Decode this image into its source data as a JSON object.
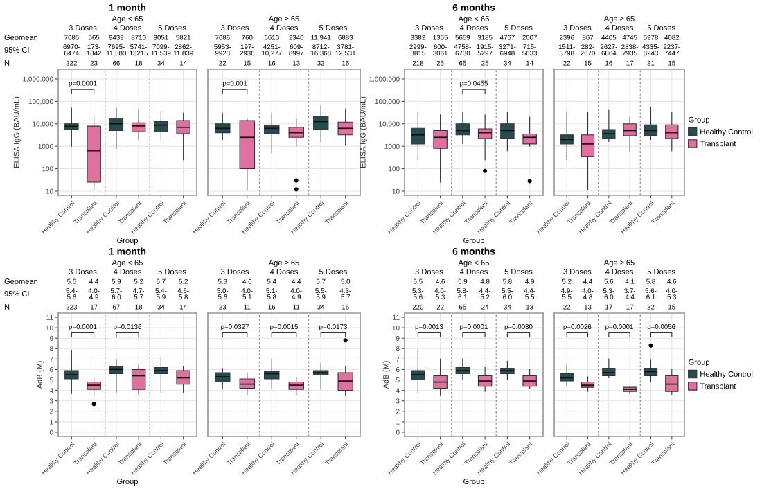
{
  "chart_data": [
    {
      "type": "box",
      "title": "1 month",
      "xlabel": "Group",
      "ylabel": "ELISA IgG (BAU/mL)",
      "categories": [
        "Healthy Control",
        "Transplant",
        "Healthy Control",
        "Transplant",
        "Healthy Control",
        "Transplant"
      ],
      "series": [
        {
          "color": "#284b4f",
          "boxes": [
            {
              "low": 1000,
              "q1": 5500,
              "median": 7700,
              "q3": 10000,
              "high": 50000
            },
            null,
            {
              "low": 800,
              "q1": 5000,
              "median": 10000,
              "q3": 17000,
              "high": 50000
            },
            null,
            {
              "low": 2000,
              "q1": 4600,
              "median": 8700,
              "q3": 12600,
              "high": 35000
            },
            null
          ]
        },
        {
          "color": "#e0709f",
          "boxes": [
            null,
            {
              "low": 12,
              "q1": 25,
              "median": 630,
              "q3": 7900,
              "high": 20000
            },
            null,
            {
              "low": 2000,
              "q1": 4400,
              "median": 8000,
              "q3": 11000,
              "high": 40000
            },
            null,
            {
              "low": 250,
              "q1": 3600,
              "median": 7000,
              "q3": 14000,
              "high": 30000
            }
          ]
        }
      ],
      "log": true,
      "ylim": [
        6.5,
        2700000
      ],
      "yticks": [
        10,
        100,
        1000,
        {
          "value": 10000,
          "label": "10,000"
        },
        {
          "value": 100000,
          "label": "100,000"
        },
        {
          "value": 1000000,
          "label": "1,000,000"
        }
      ],
      "grid": true,
      "annotations": [
        "3 Doses",
        "4 Doses",
        "5 Doses",
        "Age < 65",
        "7685",
        "565",
        "9439",
        "8710",
        "9051",
        "5821",
        "6970-\n8474",
        "173-\n1842",
        "7695-\n11,580",
        "5741-\n13215",
        "7099-\n11,539",
        "2862-\n11,839",
        "222",
        "23",
        "66",
        "18",
        "34",
        "14",
        "p=0.0001",
        null,
        null,
        "Geomean",
        "95% CI",
        "N"
      ]
    },
    {
      "type": "box",
      "categories": [
        "Healthy Control",
        "Transplant",
        "Healthy Control",
        "Transplant",
        "Healthy Control",
        "Transplant"
      ],
      "series": [
        {
          "color": "#284b4f",
          "boxes": [
            {
              "low": 2000,
              "q1": 4000,
              "median": 6300,
              "q3": 10000,
              "high": 30000
            },
            null,
            {
              "low": 500,
              "q1": 3600,
              "median": 6300,
              "q3": 8700,
              "high": 30000
            },
            null,
            {
              "low": 1600,
              "q1": 5500,
              "median": 12600,
              "q3": 22000,
              "high": 63000
            },
            null
          ]
        },
        {
          "color": "#e0709f",
          "boxes": [
            null,
            {
              "low": 12,
              "q1": 100,
              "median": 2500,
              "q3": 14000,
              "high": 16000
            },
            null,
            {
              "low": 1000,
              "q1": 2500,
              "median": 4000,
              "q3": 7000,
              "high": 16000,
              "outliers": [
                12,
                30
              ]
            },
            null,
            {
              "low": 1100,
              "q1": 3200,
              "median": 6300,
              "q3": 12000,
              "high": 46000
            }
          ]
        }
      ],
      "log": true,
      "ylim": [
        6.5,
        2700000
      ],
      "yticks": [
        10,
        100,
        1000,
        10000,
        100000,
        1000000
      ],
      "grid": true,
      "tick_labels": "x",
      "annotations": [
        "3 Doses",
        "4 Doses",
        "5 Doses",
        "Age ≥ 65",
        "7686",
        "760",
        "6610",
        "2340",
        "11,941",
        "6883",
        "5953-\n9923",
        "197-\n2936",
        "4251-\n10,277",
        "609-\n8997",
        "8712-\n16,368",
        "3781-\n12,531",
        "22",
        "15",
        "16",
        "13",
        "32",
        "16",
        "p=0.001",
        null,
        null
      ]
    },
    {
      "type": "box",
      "title": "6 months",
      "xlabel": "Group",
      "ylabel": "ELISA IgG (BAU/mL)",
      "categories": [
        "Healthy Control",
        "Transplant",
        "Healthy Control",
        "Transplant",
        "Healthy Control",
        "Transplant"
      ],
      "series": [
        {
          "color": "#284b4f",
          "boxes": [
            {
              "low": 250,
              "q1": 1260,
              "median": 3200,
              "q3": 6300,
              "high": 32000
            },
            null,
            {
              "low": 1300,
              "q1": 3200,
              "median": 5000,
              "q3": 10000,
              "high": 32000
            },
            null,
            {
              "low": 630,
              "q1": 2200,
              "median": 5000,
              "q3": 10000,
              "high": 32000
            },
            null
          ]
        },
        {
          "color": "#e0709f",
          "boxes": [
            null,
            {
              "low": 25,
              "q1": 800,
              "median": 2500,
              "q3": 5000,
              "high": 25000
            },
            null,
            {
              "low": 250,
              "q1": 2200,
              "median": 4000,
              "q3": 6000,
              "high": 25000,
              "outliers": [
                80
              ]
            },
            null,
            {
              "low": 1000,
              "q1": 1260,
              "median": 2500,
              "q3": 3500,
              "high": 20000,
              "outliers": [
                28
              ]
            }
          ]
        }
      ],
      "log": true,
      "ylim": [
        6.5,
        2700000
      ],
      "yticks": [
        10,
        100,
        1000,
        {
          "value": 10000,
          "label": "10,000"
        },
        {
          "value": 100000,
          "label": "100,000"
        },
        {
          "value": 1000000,
          "label": "1,000,000"
        }
      ],
      "grid": true,
      "annotations": [
        "3 Doses",
        "4 Doses",
        "5 Doses",
        "Age < 65",
        "3382",
        "1355",
        "5659",
        "3185",
        "4767",
        "2007",
        "2999-\n3815",
        "600-\n3061",
        "4758-\n6730",
        "1915-\n5297",
        "3271-\n6948",
        "715-\n5633",
        "218",
        "25",
        "65",
        "25",
        "34",
        "14",
        null,
        "p=0.0455",
        null
      ]
    },
    {
      "type": "box",
      "categories": [
        "Healthy Control",
        "Transplant",
        "Healthy Control",
        "Transplant",
        "Healthy Control",
        "Transplant"
      ],
      "series": [
        {
          "name": "Healthy Control",
          "color": "#284b4f",
          "boxes": [
            {
              "low": 250,
              "q1": 1260,
              "median": 2000,
              "q3": 3200,
              "high": 35000
            },
            null,
            {
              "low": 1600,
              "q1": 2200,
              "median": 3600,
              "q3": 5500,
              "high": 40000
            },
            null,
            {
              "low": 2000,
              "q1": 2900,
              "median": 5000,
              "q3": 9000,
              "high": 55000
            },
            null
          ]
        },
        {
          "name": "Transplant",
          "color": "#e0709f",
          "boxes": [
            null,
            {
              "low": 12,
              "q1": 350,
              "median": 1260,
              "q3": 3200,
              "high": 32000
            },
            null,
            {
              "low": 630,
              "q1": 2900,
              "median": 5000,
              "q3": 10000,
              "high": 20000
            },
            null,
            {
              "low": 630,
              "q1": 2200,
              "median": 4000,
              "q3": 9000,
              "high": 32000
            }
          ]
        }
      ],
      "log": true,
      "ylim": [
        6.5,
        2700000
      ],
      "yticks": [
        10,
        100,
        1000,
        10000,
        100000,
        1000000
      ],
      "grid": true,
      "tick_labels": "x",
      "legend": "right",
      "legend_title": "Group",
      "annotations": [
        "3 Doses",
        "4 Doses",
        "5 Doses",
        "Age ≥ 65",
        "2396",
        "867",
        "4405",
        "4745",
        "5978",
        "4082",
        "1511-\n3798",
        "282-\n2670",
        "2627-\n6864",
        "2838-\n7935",
        "4335-\n8243",
        "2237-\n7447",
        "22",
        "15",
        "16",
        "17",
        "31",
        "15",
        null,
        null,
        null
      ]
    },
    {
      "type": "box",
      "title": "1 month",
      "xlabel": "Group",
      "ylabel": "AdB (M)",
      "categories": [
        "Healthy Control",
        "Transplant",
        "Healthy Control",
        "Transplant",
        "Healthy Control",
        "Transplant"
      ],
      "series": [
        {
          "color": "#284b4f",
          "boxes": [
            {
              "low": 3.7,
              "q1": 5.1,
              "median": 5.5,
              "q3": 5.9,
              "high": 7.8
            },
            null,
            {
              "low": 3.8,
              "q1": 5.6,
              "median": 6.0,
              "q3": 6.3,
              "high": 6.9
            },
            null,
            {
              "low": 3.8,
              "q1": 5.6,
              "median": 5.9,
              "q3": 6.2,
              "high": 7.2
            },
            null
          ]
        },
        {
          "color": "#e0709f",
          "boxes": [
            null,
            {
              "low": 3.5,
              "q1": 4.1,
              "median": 4.5,
              "q3": 4.8,
              "high": 5.2,
              "outliers": [
                2.7
              ]
            },
            null,
            {
              "low": 3.6,
              "q1": 4.1,
              "median": 5.4,
              "q3": 6.0,
              "high": 6.4
            },
            null,
            {
              "low": 3.8,
              "q1": 4.6,
              "median": 5.2,
              "q3": 5.9,
              "high": 6.3
            }
          ]
        }
      ],
      "ylim": [
        -0.4,
        11.4
      ],
      "yticks": [
        0,
        1,
        2,
        3,
        4,
        5,
        6,
        7,
        8,
        9,
        10,
        11
      ],
      "grid": true,
      "annotations": [
        "3 Doses",
        "4 Doses",
        "5 Doses",
        "Age < 65",
        "5.5",
        "4.4",
        "5.9",
        "5.2",
        "5.7",
        "5.2",
        "5.4-\n5.6",
        "4.0-\n4.9",
        "5.7-\n6.0",
        "4.7-\n5.7",
        "5.4-\n5.9",
        "4.6-\n5.8",
        "223",
        "17",
        "67",
        "18",
        "34",
        "14",
        "p=0.0001",
        "p=0.0136",
        null,
        "Geomean",
        "95% CI",
        "N"
      ]
    },
    {
      "type": "box",
      "categories": [
        "Healthy Control",
        "Transplant",
        "Healthy Control",
        "Transplant",
        "Healthy Control",
        "Transplant"
      ],
      "series": [
        {
          "color": "#284b4f",
          "boxes": [
            {
              "low": 4.2,
              "q1": 4.8,
              "median": 5.3,
              "q3": 5.7,
              "high": 6.1
            },
            null,
            {
              "low": 4.2,
              "q1": 5.1,
              "median": 5.6,
              "q3": 5.8,
              "high": 7.0
            },
            null,
            {
              "low": 4.1,
              "q1": 5.5,
              "median": 5.7,
              "q3": 5.9,
              "high": 6.6
            },
            null
          ]
        },
        {
          "color": "#e0709f",
          "boxes": [
            null,
            {
              "low": 3.6,
              "q1": 4.2,
              "median": 4.6,
              "q3": 5.1,
              "high": 5.6
            },
            null,
            {
              "low": 3.6,
              "q1": 4.1,
              "median": 4.5,
              "q3": 4.8,
              "high": 5.2
            },
            null,
            {
              "low": 3.5,
              "q1": 4.0,
              "median": 4.9,
              "q3": 5.7,
              "high": 6.3,
              "outliers": [
                8.8
              ]
            }
          ]
        }
      ],
      "ylim": [
        -0.4,
        11.4
      ],
      "yticks": [
        0,
        1,
        2,
        3,
        4,
        5,
        6,
        7,
        8,
        9,
        10,
        11
      ],
      "grid": true,
      "tick_labels": "x",
      "annotations": [
        "3 Doses",
        "4 Doses",
        "5 Doses",
        "Age ≥ 65",
        "5.3",
        "4.6",
        "5.4",
        "4.4",
        "5.7",
        "5.0",
        "5.0-\n5.6",
        "4.0-\n5.1",
        "5.1-\n5.8",
        "4.0-\n4.9",
        "5.5-\n5.9",
        "4.3-\n5.7",
        "23",
        "11",
        "16",
        "11",
        "34",
        "16",
        "p=0.0327",
        "p=0.0015",
        "p=0.0173"
      ]
    },
    {
      "type": "box",
      "title": "6 months",
      "xlabel": "Group",
      "ylabel": "AdB (M)",
      "categories": [
        "Healthy Control",
        "Transplant",
        "Healthy Control",
        "Transplant",
        "Healthy Control",
        "Transplant"
      ],
      "series": [
        {
          "color": "#284b4f",
          "boxes": [
            {
              "low": 3.8,
              "q1": 5.0,
              "median": 5.5,
              "q3": 5.9,
              "high": 7.8
            },
            null,
            {
              "low": 5.0,
              "q1": 5.6,
              "median": 5.9,
              "q3": 6.2,
              "high": 7.0
            },
            null,
            {
              "low": 5.0,
              "q1": 5.6,
              "median": 5.9,
              "q3": 6.1,
              "high": 6.8
            },
            null
          ]
        },
        {
          "color": "#e0709f",
          "boxes": [
            null,
            {
              "low": 3.5,
              "q1": 4.2,
              "median": 4.8,
              "q3": 5.4,
              "high": 7.0
            },
            null,
            {
              "low": 3.9,
              "q1": 4.4,
              "median": 4.9,
              "q3": 5.4,
              "high": 6.2
            },
            null,
            {
              "low": 4.2,
              "q1": 4.4,
              "median": 4.9,
              "q3": 5.4,
              "high": 6.0
            }
          ]
        }
      ],
      "ylim": [
        -0.4,
        11.4
      ],
      "yticks": [
        0,
        1,
        2,
        3,
        4,
        5,
        6,
        7,
        8,
        9,
        10,
        11
      ],
      "grid": true,
      "annotations": [
        "3 Doses",
        "4 Doses",
        "5 Doses",
        "Age < 65",
        "5.5",
        "4.6",
        "5.9",
        "4.8",
        "5.8",
        "4.9",
        "5.3-\n5.6",
        "4.0-\n5.3",
        "5.8-\n6.1",
        "4.4-\n5.2",
        "5.5-\n6.0",
        "4.4-\n5.5",
        "220",
        "22",
        "65",
        "24",
        "34",
        "13",
        "p=0.0013",
        "p=0.0001",
        "p=0.0080"
      ]
    },
    {
      "type": "box",
      "categories": [
        "Healthy Control",
        "Transplant",
        "Healthy Control",
        "Transplant",
        "Healthy Control",
        "Transplant"
      ],
      "series": [
        {
          "name": "Healthy Control",
          "color": "#284b4f",
          "boxes": [
            {
              "low": 4.4,
              "q1": 4.9,
              "median": 5.2,
              "q3": 5.6,
              "high": 6.4
            },
            null,
            {
              "low": 5.2,
              "q1": 5.4,
              "median": 5.7,
              "q3": 6.1,
              "high": 7.0
            },
            null,
            {
              "low": 4.8,
              "q1": 5.4,
              "median": 5.8,
              "q3": 6.1,
              "high": 6.9,
              "outliers": [
                8.3
              ]
            },
            null
          ]
        },
        {
          "name": "Transplant",
          "color": "#e0709f",
          "boxes": [
            null,
            {
              "low": 3.9,
              "q1": 4.3,
              "median": 4.5,
              "q3": 4.8,
              "high": 5.3
            },
            null,
            {
              "low": 3.7,
              "q1": 3.9,
              "median": 4.1,
              "q3": 4.3,
              "high": 4.4
            },
            null,
            {
              "low": 3.6,
              "q1": 3.9,
              "median": 4.6,
              "q3": 5.4,
              "high": 6.0
            }
          ]
        }
      ],
      "ylim": [
        -0.4,
        11.4
      ],
      "yticks": [
        0,
        1,
        2,
        3,
        4,
        5,
        6,
        7,
        8,
        9,
        10,
        11
      ],
      "grid": true,
      "tick_labels": "x",
      "legend": "right",
      "legend_title": "Group",
      "annotations": [
        "3 Doses",
        "4 Doses",
        "5 Doses",
        "Age ≥ 65",
        "5.2",
        "4.4",
        "5.6",
        "4.1",
        "5.8",
        "4.6",
        "4.9-\n5.5",
        "4.0-\n4.8",
        "5.3-\n6.0",
        "3.7-\n4.4",
        "5.6-\n6.1",
        "4.0-\n5.3",
        "22",
        "13",
        "17",
        "17",
        "32",
        "15",
        "p=0.0026",
        "p=0.0001",
        "p=0.0056"
      ]
    }
  ]
}
